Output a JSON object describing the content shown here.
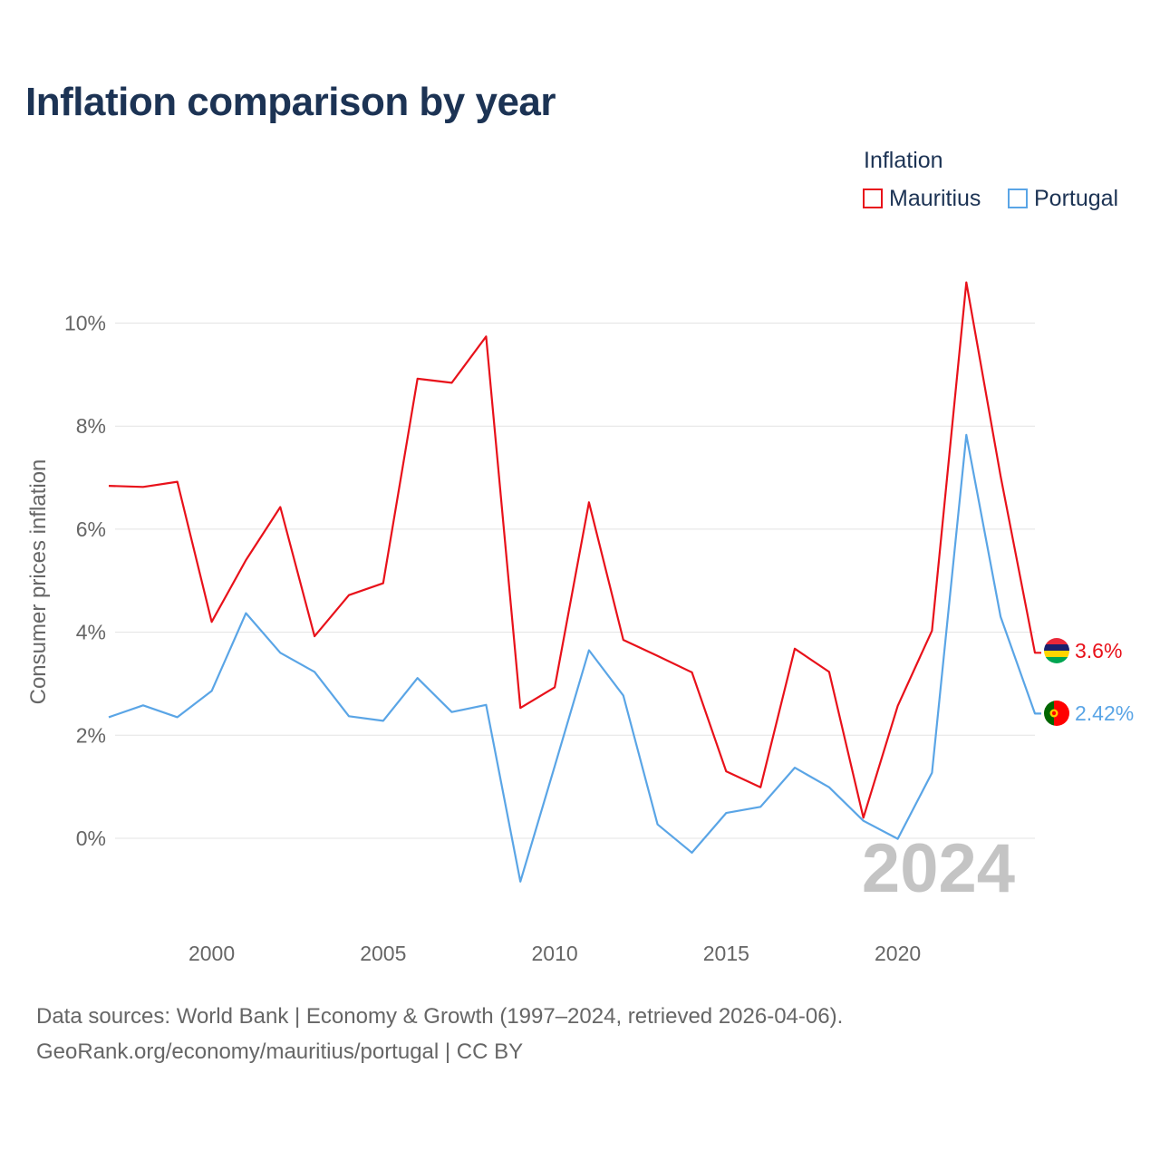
{
  "title": "Inflation comparison by year",
  "legend": {
    "title": "Inflation",
    "items": [
      {
        "label": "Mauritius",
        "color": "#e8111a"
      },
      {
        "label": "Portugal",
        "color": "#5aa5e6"
      }
    ]
  },
  "source": {
    "line1": "Data sources: World Bank | Economy & Growth (1997–2024, retrieved 2026-04-06).",
    "line2": "GeoRank.org/economy/mauritius/portugal | CC BY"
  },
  "chart_data": {
    "type": "line",
    "title": "Inflation comparison by year",
    "xlabel": "",
    "ylabel": "Consumer prices inflation",
    "xlim": [
      1997,
      2024
    ],
    "ylim": [
      -1.5,
      11
    ],
    "grid": true,
    "legend_position": "top-right",
    "y_ticks": [
      0,
      2,
      4,
      6,
      8,
      10
    ],
    "y_tick_labels": [
      "0%",
      "2%",
      "4%",
      "6%",
      "8%",
      "10%"
    ],
    "x_ticks": [
      2000,
      2005,
      2010,
      2015,
      2020
    ],
    "x_tick_labels": [
      "2000",
      "2005",
      "2010",
      "2015",
      "2020"
    ],
    "watermark": "2024",
    "x": [
      1997,
      1998,
      1999,
      2000,
      2001,
      2002,
      2003,
      2004,
      2005,
      2006,
      2007,
      2008,
      2009,
      2010,
      2011,
      2012,
      2013,
      2014,
      2015,
      2016,
      2017,
      2018,
      2019,
      2020,
      2021,
      2022,
      2023,
      2024
    ],
    "series": [
      {
        "name": "Mauritius",
        "color": "#e8111a",
        "end_label": "3.6%",
        "values": [
          6.84,
          6.82,
          6.92,
          4.2,
          5.4,
          6.43,
          3.92,
          4.72,
          4.95,
          8.92,
          8.84,
          9.74,
          2.53,
          2.93,
          6.52,
          3.85,
          3.54,
          3.22,
          1.3,
          0.99,
          3.68,
          3.23,
          0.4,
          2.57,
          4.03,
          10.79,
          7.03,
          3.6
        ]
      },
      {
        "name": "Portugal",
        "color": "#5aa5e6",
        "end_label": "2.42%",
        "values": [
          2.35,
          2.58,
          2.35,
          2.86,
          4.37,
          3.6,
          3.23,
          2.37,
          2.28,
          3.11,
          2.45,
          2.59,
          -0.84,
          1.4,
          3.65,
          2.77,
          0.27,
          -0.28,
          0.49,
          0.61,
          1.37,
          0.99,
          0.34,
          -0.01,
          1.27,
          7.83,
          4.3,
          2.42
        ]
      }
    ]
  }
}
